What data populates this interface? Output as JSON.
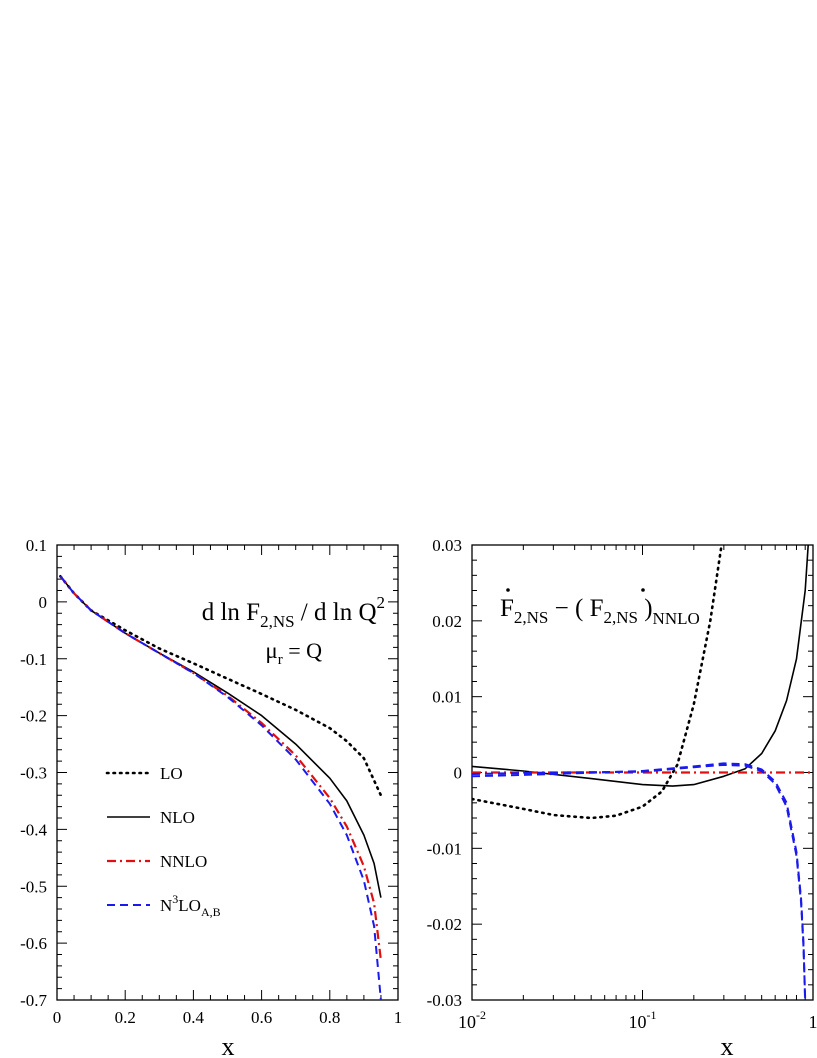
{
  "chart_data": [
    {
      "type": "line",
      "title": "d ln F₂,NS / d ln Q²",
      "title_parts": {
        "main": "d ln F",
        "sub": "2,NS",
        "mid": " / d ln Q",
        "sup": "2"
      },
      "annotation": {
        "main": "μ",
        "sub": "r",
        "rest": " = Q"
      },
      "xlabel": "x",
      "ylabel": "",
      "xlim": [
        0,
        1
      ],
      "ylim": [
        -0.7,
        0.1
      ],
      "xticks": [
        "0",
        "0.2",
        "0.4",
        "0.6",
        "0.8",
        "1"
      ],
      "yticks": [
        "0.1",
        "0",
        "-0.1",
        "-0.2",
        "-0.3",
        "-0.4",
        "-0.5",
        "-0.6",
        "-0.7"
      ],
      "legend_placement": "bottom-left",
      "series": [
        {
          "name": "LO",
          "legend": {
            "main": "LO"
          },
          "color": "#000000",
          "style": "dotted",
          "x": [
            0.01,
            0.05,
            0.1,
            0.2,
            0.3,
            0.4,
            0.5,
            0.6,
            0.7,
            0.8,
            0.85,
            0.9,
            0.95
          ],
          "y": [
            0.045,
            0.015,
            -0.015,
            -0.05,
            -0.082,
            -0.108,
            -0.135,
            -0.162,
            -0.19,
            -0.222,
            -0.245,
            -0.275,
            -0.34
          ]
        },
        {
          "name": "NLO",
          "legend": {
            "main": "NLO"
          },
          "color": "#000000",
          "style": "solid",
          "x": [
            0.01,
            0.05,
            0.1,
            0.2,
            0.3,
            0.4,
            0.5,
            0.6,
            0.7,
            0.8,
            0.85,
            0.9,
            0.93,
            0.95
          ],
          "y": [
            0.045,
            0.015,
            -0.015,
            -0.055,
            -0.09,
            -0.123,
            -0.16,
            -0.2,
            -0.25,
            -0.31,
            -0.35,
            -0.41,
            -0.46,
            -0.52
          ]
        },
        {
          "name": "NNLO",
          "legend": {
            "main": "NNLO"
          },
          "color": "#e01010",
          "style": "dashdot",
          "x": [
            0.01,
            0.05,
            0.1,
            0.2,
            0.3,
            0.4,
            0.5,
            0.6,
            0.7,
            0.8,
            0.85,
            0.9,
            0.93,
            0.95
          ],
          "y": [
            0.045,
            0.015,
            -0.015,
            -0.055,
            -0.09,
            -0.125,
            -0.165,
            -0.213,
            -0.27,
            -0.345,
            -0.395,
            -0.465,
            -0.53,
            -0.63
          ]
        },
        {
          "name": "N³LO_A,B",
          "legend": {
            "main": "N",
            "sup": "3",
            "mid": "LO",
            "sub": "A,B"
          },
          "color": "#1a1aee",
          "style": "dashed",
          "x": [
            0.01,
            0.05,
            0.1,
            0.2,
            0.3,
            0.4,
            0.5,
            0.6,
            0.7,
            0.8,
            0.85,
            0.9,
            0.93,
            0.95
          ],
          "y": [
            0.045,
            0.015,
            -0.015,
            -0.055,
            -0.09,
            -0.125,
            -0.167,
            -0.217,
            -0.277,
            -0.355,
            -0.41,
            -0.49,
            -0.57,
            -0.7
          ]
        }
      ]
    },
    {
      "type": "line",
      "title": "Ḟ₂,NS − (Ḟ₂,NS)NNLO",
      "title_parts": {
        "a": "F",
        "a_sub": "2,NS",
        "mid": " − ( ",
        "b": "F",
        "b_sub": "2,NS",
        "close": " )",
        "end_sub": "NNLO"
      },
      "xlabel": "x",
      "ylabel": "",
      "xscale": "log",
      "xlim": [
        0.01,
        1
      ],
      "ylim": [
        -0.03,
        0.03
      ],
      "xticks": [
        {
          "base": "10",
          "exp": "-2",
          "value": 0.01
        },
        {
          "base": "10",
          "exp": "-1",
          "value": 0.1
        },
        {
          "base": "1",
          "exp": "",
          "value": 1
        }
      ],
      "yticks": [
        "0.03",
        "0.02",
        "0.01",
        "0",
        "-0.01",
        "-0.02",
        "-0.03"
      ],
      "series": [
        {
          "name": "LO",
          "color": "#000000",
          "style": "dotted",
          "x": [
            0.01,
            0.02,
            0.03,
            0.05,
            0.07,
            0.1,
            0.13,
            0.16,
            0.2,
            0.25,
            0.3
          ],
          "y": [
            -0.0035,
            -0.0048,
            -0.0056,
            -0.006,
            -0.0057,
            -0.0045,
            -0.0025,
            0.001,
            0.009,
            0.02,
            0.032
          ]
        },
        {
          "name": "NLO",
          "color": "#000000",
          "style": "solid",
          "x": [
            0.01,
            0.02,
            0.05,
            0.1,
            0.15,
            0.2,
            0.3,
            0.4,
            0.5,
            0.6,
            0.7,
            0.8,
            0.9,
            0.95
          ],
          "y": [
            0.0008,
            0.0002,
            -0.0008,
            -0.0016,
            -0.0018,
            -0.0016,
            -0.0005,
            0.0005,
            0.0025,
            0.0055,
            0.0095,
            0.015,
            0.024,
            0.032
          ]
        },
        {
          "name": "NNLO",
          "color": "#e01010",
          "style": "dashdot",
          "x": [
            0.01,
            1
          ],
          "y": [
            0,
            0
          ]
        },
        {
          "name": "N³LO_A",
          "color": "#1a1aee",
          "style": "dashed",
          "x": [
            0.01,
            0.03,
            0.1,
            0.2,
            0.3,
            0.4,
            0.5,
            0.6,
            0.7,
            0.8,
            0.85,
            0.88,
            0.9
          ],
          "y": [
            -0.0002,
            0,
            0.0001,
            0.0007,
            0.001,
            0.0009,
            0.0002,
            -0.0015,
            -0.0045,
            -0.011,
            -0.017,
            -0.023,
            -0.03
          ]
        },
        {
          "name": "N³LO_B",
          "color": "#1a1aee",
          "style": "dashed",
          "x": [
            0.01,
            0.03,
            0.1,
            0.2,
            0.3,
            0.4,
            0.5,
            0.6,
            0.7,
            0.8,
            0.85,
            0.88,
            0.9
          ],
          "y": [
            -0.0005,
            -0.0002,
            0.0002,
            0.0008,
            0.0012,
            0.0011,
            0.0004,
            -0.0012,
            -0.004,
            -0.0105,
            -0.0165,
            -0.0225,
            -0.0305
          ]
        }
      ]
    }
  ]
}
